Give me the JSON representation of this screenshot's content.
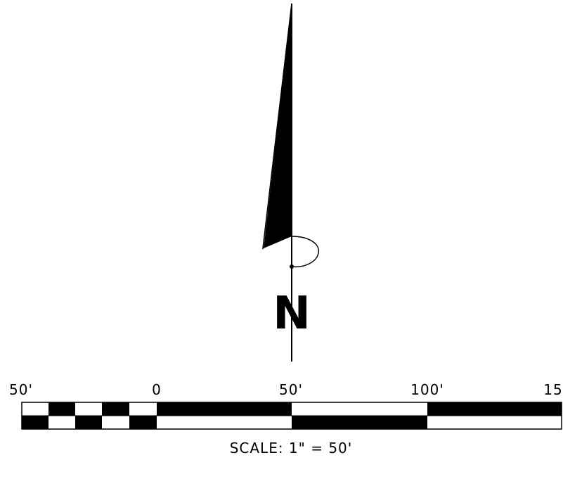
{
  "north_arrow": {
    "letter": "N",
    "arrow_icon": "north-arrow-icon"
  },
  "scale_bar": {
    "tick_labels": [
      "50'",
      "0",
      "50'",
      "100'",
      "15"
    ],
    "caption": "SCALE:  1\"  =  50'",
    "fill_color": "#000000",
    "background_color": "#ffffff"
  }
}
